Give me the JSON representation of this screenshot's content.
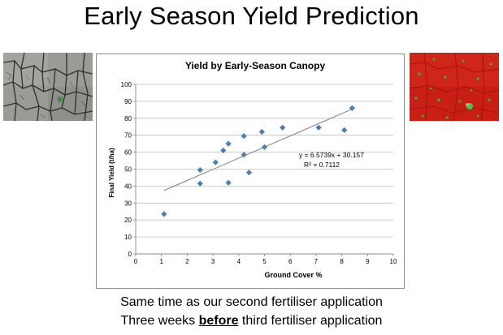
{
  "slide": {
    "title": "Early Season Yield Prediction",
    "caption_line1": "Same time as our second fertiliser application",
    "caption_line2_before": "Three weeks ",
    "caption_line2_emph": "before",
    "caption_line2_after": " third fertiliser application"
  },
  "photos": {
    "left_icon": "cracked-soil-photo",
    "right_icon": "green-canopy-photo"
  },
  "chart_data": {
    "type": "scatter",
    "title": "Yield by Early-Season Canopy",
    "xlabel": "Ground Cover %",
    "ylabel": "Final Yield (t/ha)",
    "xlim": [
      0,
      10
    ],
    "ylim": [
      0,
      100
    ],
    "x_ticks": [
      0,
      1,
      2,
      3,
      4,
      5,
      6,
      7,
      8,
      9,
      10
    ],
    "y_ticks": [
      0,
      10,
      20,
      30,
      40,
      50,
      60,
      70,
      80,
      90,
      100
    ],
    "grid": "horizontal",
    "marker_color": "#4a7ebb",
    "points": [
      {
        "x": 1.1,
        "y": 23.5
      },
      {
        "x": 2.5,
        "y": 41.5
      },
      {
        "x": 2.5,
        "y": 49.5
      },
      {
        "x": 3.1,
        "y": 54
      },
      {
        "x": 3.4,
        "y": 61
      },
      {
        "x": 3.6,
        "y": 42
      },
      {
        "x": 3.6,
        "y": 65
      },
      {
        "x": 4.2,
        "y": 69.5
      },
      {
        "x": 4.2,
        "y": 58.5
      },
      {
        "x": 4.4,
        "y": 48
      },
      {
        "x": 4.9,
        "y": 72
      },
      {
        "x": 5.0,
        "y": 63
      },
      {
        "x": 5.7,
        "y": 74.5
      },
      {
        "x": 7.1,
        "y": 74.5
      },
      {
        "x": 8.1,
        "y": 73
      },
      {
        "x": 8.4,
        "y": 86
      }
    ],
    "trendline": {
      "slope": 6.5739,
      "intercept": 30.157,
      "x_start": 1.1,
      "x_end": 8.4
    },
    "equation_label": "y = 6.5739x + 30.157",
    "r2_label": "R² = 0.7112"
  }
}
